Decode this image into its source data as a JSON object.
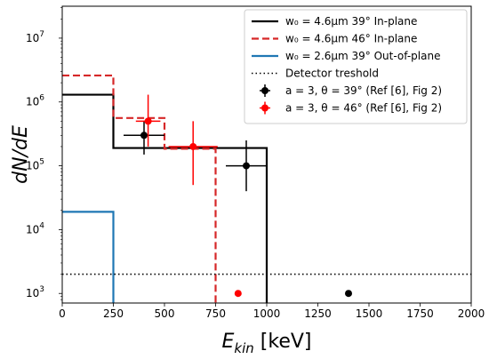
{
  "chart_data": {
    "type": "line",
    "title": "",
    "xlabel": "E_kin [keV]",
    "ylabel": "dN/dE",
    "xlim": [
      0,
      2000
    ],
    "ylim_log10": [
      2.85,
      7.5
    ],
    "x_scale": "linear",
    "y_scale": "log",
    "grid": false,
    "legend_position": "top-right",
    "x_ticks": [
      0,
      250,
      500,
      750,
      1000,
      1250,
      1500,
      1750,
      2000
    ],
    "y_ticks": [
      {
        "base": "10",
        "exp": "3",
        "value": 1000
      },
      {
        "base": "10",
        "exp": "4",
        "value": 10000
      },
      {
        "base": "10",
        "exp": "5",
        "value": 100000
      },
      {
        "base": "10",
        "exp": "6",
        "value": 1000000
      },
      {
        "base": "10",
        "exp": "7",
        "value": 10000000
      }
    ],
    "series": [
      {
        "name": "w₀ = 4.6μm 39° In-plane",
        "style": "solid",
        "color": "#000000",
        "steps": [
          {
            "x0": 0,
            "x1": 250,
            "y": 1300000
          },
          {
            "x0": 250,
            "x1": 1000,
            "y": 190000
          }
        ],
        "end_x": 1000
      },
      {
        "name": "w₀ = 4.6μm 46° In-plane",
        "style": "dashed",
        "color": "#d62728",
        "steps": [
          {
            "x0": 0,
            "x1": 250,
            "y": 2600000
          },
          {
            "x0": 250,
            "x1": 500,
            "y": 560000
          },
          {
            "x0": 500,
            "x1": 750,
            "y": 185000
          }
        ],
        "end_x": 750
      },
      {
        "name": "w₀ = 2.6μm 39° Out-of-plane",
        "style": "solid",
        "color": "#1f77b4",
        "steps": [
          {
            "x0": 0,
            "x1": 250,
            "y": 19000
          }
        ],
        "end_x": 250
      },
      {
        "name": "Detector treshold",
        "style": "dotted",
        "color": "#000000",
        "constant_y": 2000
      },
      {
        "name": "a = 3, θ = 39° (Ref [6], Fig 2)",
        "style": "errorbar",
        "color": "#000000",
        "points": [
          {
            "x": 400,
            "y": 300000,
            "xerr": 100,
            "ylo": 150000,
            "yhi": 500000
          },
          {
            "x": 900,
            "y": 100000,
            "xerr": 100,
            "ylo": 40000,
            "yhi": 250000
          },
          {
            "x": 1400,
            "y": 1000,
            "xerr": 0,
            "ylo": 1000,
            "yhi": 1000
          }
        ]
      },
      {
        "name": "a = 3, θ = 46° (Ref [6], Fig 2)",
        "style": "errorbar",
        "color": "#ff0000",
        "points": [
          {
            "x": 420,
            "y": 500000,
            "xerr": 60,
            "ylo": 200000,
            "yhi": 1300000
          },
          {
            "x": 640,
            "y": 200000,
            "xerr": 120,
            "ylo": 50000,
            "yhi": 500000
          },
          {
            "x": 860,
            "y": 1000,
            "xerr": 0,
            "ylo": 1000,
            "yhi": 1000
          }
        ]
      }
    ]
  }
}
